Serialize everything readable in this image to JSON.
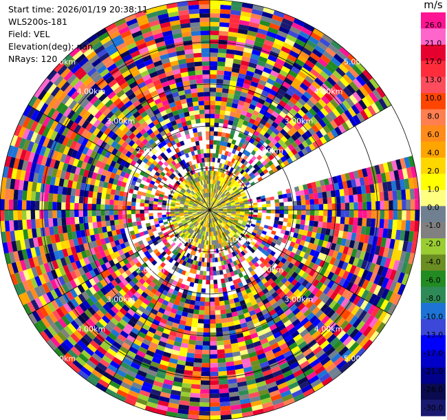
{
  "info": {
    "start_time": "Start time: 2026/01/19 20:38:11",
    "instrument": "WLS200s-181",
    "field": "Field: VEL",
    "elevation": "Elevation(deg): nan",
    "nrays": "NRays: 120"
  },
  "colorbar": {
    "unit": "m/s",
    "ticks": [
      "26.0",
      "21.0",
      "17.0",
      "13.0",
      "10.0",
      "8.0",
      "6.0",
      "4.0",
      "2.0",
      "1.0",
      "0.0",
      "-1.0",
      "-2.0",
      "-4.0",
      "-6.0",
      "-8.0",
      "-10.0",
      "-13.0",
      "-17.0",
      "-21.0",
      "-26.0",
      "-30.0"
    ],
    "colors": [
      "#ff1493",
      "#ff66cc",
      "#e6002e",
      "#ff2d3c",
      "#ff4d5e",
      "#ff4500",
      "#ff7f50",
      "#ff8c1a",
      "#ffa500",
      "#ffd700",
      "#ffff00",
      "#ffff80",
      "#708090",
      "#808080",
      "#9acd32",
      "#6b8e23",
      "#228b22",
      "#2e8b57",
      "#1e74d6",
      "#3b48d8",
      "#0000ff",
      "#0000c8",
      "#00008b",
      "#0a0a50",
      "#191970"
    ]
  },
  "chart_data": {
    "type": "heatmap",
    "projection": "polar (PPI)",
    "field": "VEL",
    "units": "m/s",
    "n_rays": 120,
    "range_rings": [
      {
        "label": "1.00km",
        "label_positions": 2
      },
      {
        "label": "2.00km",
        "label_positions": 4
      },
      {
        "label": "3.00km",
        "label_positions": 4
      },
      {
        "label": "4.00km",
        "label_positions": 4
      },
      {
        "label": "5.00km",
        "label_positions": 4
      }
    ],
    "ring_radii_km": [
      1,
      2,
      3,
      4,
      5
    ],
    "max_range_km": 5.0,
    "spokes_deg": [
      0,
      30,
      60,
      90,
      120,
      150,
      180,
      210,
      240,
      270,
      300,
      330
    ],
    "missing_sector_deg": [
      60,
      75
    ],
    "near_field_values": {
      "inner_km": 1.0,
      "dominant": [
        0.0,
        1.0,
        -2.0,
        -1.0
      ],
      "notes": "yellow/grey/green near radar"
    },
    "far_field": "noise (all colors)",
    "clim": [
      -30,
      30
    ]
  }
}
